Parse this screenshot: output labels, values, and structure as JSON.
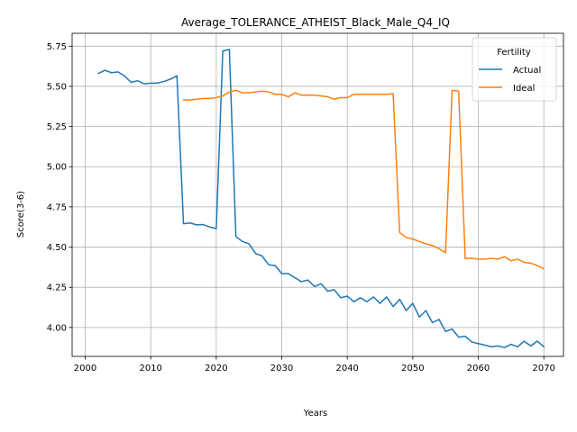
{
  "chart_data": {
    "type": "line",
    "title": "Average_TOLERANCE_ATHEIST_Black_Male_Q4_IQ",
    "xlabel": "Years",
    "ylabel": "Score(3-6)",
    "xlim": [
      1998,
      2073
    ],
    "ylim": [
      3.82,
      5.83
    ],
    "xticks": [
      2000,
      2010,
      2020,
      2030,
      2040,
      2050,
      2060,
      2070
    ],
    "yticks": [
      4.0,
      4.25,
      4.5,
      4.75,
      5.0,
      5.25,
      5.5,
      5.75
    ],
    "ytick_labels": [
      "4.00",
      "4.25",
      "4.50",
      "4.75",
      "5.00",
      "5.25",
      "5.50",
      "5.75"
    ],
    "grid": true,
    "legend": {
      "title": "Fertility",
      "position": "upper right"
    },
    "series": [
      {
        "name": "Actual",
        "color": "#1f77b4",
        "x": [
          2002,
          2003,
          2004,
          2005,
          2006,
          2007,
          2008,
          2009,
          2010,
          2011,
          2012,
          2013,
          2014,
          2015,
          2016,
          2017,
          2018,
          2019,
          2020,
          2021,
          2022,
          2023,
          2024,
          2025,
          2026,
          2027,
          2028,
          2029,
          2030,
          2031,
          2032,
          2033,
          2034,
          2035,
          2036,
          2037,
          2038,
          2039,
          2040,
          2041,
          2042,
          2043,
          2044,
          2045,
          2046,
          2047,
          2048,
          2049,
          2050,
          2051,
          2052,
          2053,
          2054,
          2055,
          2056,
          2057,
          2058,
          2059,
          2060,
          2061,
          2062,
          2063,
          2064,
          2065,
          2066,
          2067,
          2068,
          2069,
          2070
        ],
        "y": [
          5.58,
          5.6,
          5.585,
          5.59,
          5.565,
          5.525,
          5.535,
          5.515,
          5.52,
          5.52,
          5.53,
          5.545,
          5.565,
          4.645,
          4.65,
          4.638,
          4.64,
          4.625,
          4.615,
          5.72,
          5.73,
          4.565,
          4.535,
          4.52,
          4.46,
          4.445,
          4.39,
          4.385,
          4.335,
          4.335,
          4.31,
          4.285,
          4.295,
          4.255,
          4.272,
          4.225,
          4.235,
          4.185,
          4.195,
          4.16,
          4.185,
          4.16,
          4.19,
          4.15,
          4.19,
          4.13,
          4.175,
          4.105,
          4.15,
          4.065,
          4.105,
          4.03,
          4.05,
          3.975,
          3.99,
          3.94,
          3.945,
          3.91,
          3.9,
          3.89,
          3.88,
          3.885,
          3.875,
          3.895,
          3.88,
          3.915,
          3.885,
          3.915,
          3.88
        ]
      },
      {
        "name": "Ideal",
        "color": "#ff7f0e",
        "x": [
          2015,
          2016,
          2017,
          2018,
          2019,
          2020,
          2021,
          2022,
          2023,
          2024,
          2025,
          2026,
          2027,
          2028,
          2029,
          2030,
          2031,
          2032,
          2033,
          2034,
          2035,
          2036,
          2037,
          2038,
          2039,
          2040,
          2041,
          2042,
          2043,
          2044,
          2045,
          2046,
          2047,
          2048,
          2049,
          2050,
          2051,
          2052,
          2053,
          2054,
          2055,
          2056,
          2057,
          2058,
          2059,
          2060,
          2061,
          2062,
          2063,
          2064,
          2065,
          2066,
          2067,
          2068,
          2069,
          2070
        ],
        "y": [
          5.415,
          5.415,
          5.42,
          5.425,
          5.425,
          5.43,
          5.44,
          5.465,
          5.475,
          5.46,
          5.46,
          5.465,
          5.47,
          5.465,
          5.45,
          5.45,
          5.435,
          5.46,
          5.445,
          5.445,
          5.445,
          5.44,
          5.435,
          5.42,
          5.43,
          5.43,
          5.45,
          5.45,
          5.45,
          5.45,
          5.45,
          5.45,
          5.455,
          4.59,
          4.56,
          4.55,
          4.535,
          4.52,
          4.51,
          4.49,
          4.465,
          5.475,
          5.47,
          4.43,
          4.43,
          4.425,
          4.425,
          4.43,
          4.425,
          4.44,
          4.415,
          4.425,
          4.405,
          4.4,
          4.385,
          4.365
        ]
      }
    ]
  }
}
